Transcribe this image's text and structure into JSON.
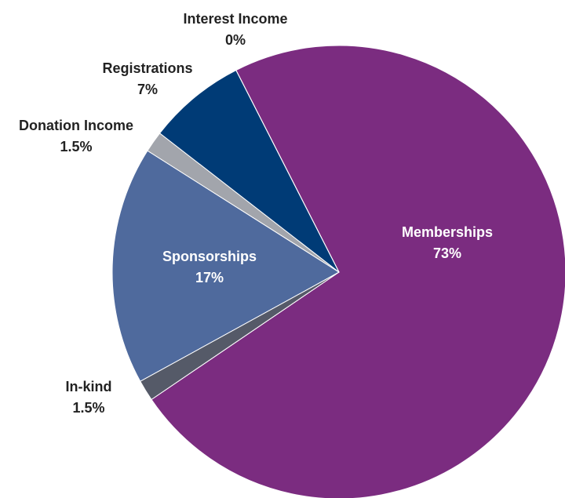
{
  "chart_data": {
    "type": "pie",
    "categories": [
      "Memberships",
      "In-kind",
      "Sponsorships",
      "Donation Income",
      "Registrations",
      "Interest Income"
    ],
    "values": [
      73,
      1.5,
      17,
      1.5,
      7,
      0
    ],
    "value_labels": [
      "73%",
      "1.5%",
      "17%",
      "1.5%",
      "7%",
      "0%"
    ],
    "colors": [
      "#7b2c80",
      "#555a68",
      "#4f6a9d",
      "#a2a5ac",
      "#003b76",
      "#c9c9c9"
    ]
  }
}
